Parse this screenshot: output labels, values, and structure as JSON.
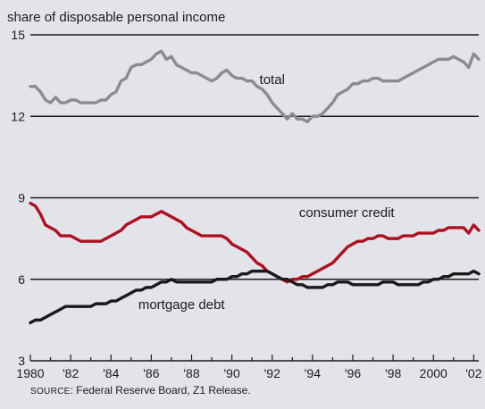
{
  "chart_data": {
    "type": "line",
    "ylabel": "share of disposable personal income",
    "ylim": [
      3,
      15
    ],
    "yticks": [
      15,
      12,
      9,
      6,
      3
    ],
    "xlim": [
      1980,
      2002.25
    ],
    "xtick_labels": [
      "1980",
      "'82",
      "'84",
      "'86",
      "'88",
      "'90",
      "'92",
      "'94",
      "'96",
      "'98",
      "2000",
      "'02"
    ],
    "xtick_values": [
      1980,
      1982,
      1984,
      1986,
      1988,
      1990,
      1992,
      1994,
      1996,
      1998,
      2000,
      2002
    ],
    "grid": "horizontal at 15, 12, 9, 6",
    "series": [
      {
        "name": "total",
        "color": "#8c8c8c",
        "x": [
          1980,
          1980.25,
          1980.5,
          1980.75,
          1981,
          1981.25,
          1981.5,
          1981.75,
          1982,
          1982.25,
          1982.5,
          1982.75,
          1983,
          1983.25,
          1983.5,
          1983.75,
          1984,
          1984.25,
          1984.5,
          1984.75,
          1985,
          1985.25,
          1985.5,
          1985.75,
          1986,
          1986.25,
          1986.5,
          1986.75,
          1987,
          1987.25,
          1987.5,
          1987.75,
          1988,
          1988.25,
          1988.5,
          1988.75,
          1989,
          1989.25,
          1989.5,
          1989.75,
          1990,
          1990.25,
          1990.5,
          1990.75,
          1991,
          1991.25,
          1991.5,
          1991.75,
          1992,
          1992.25,
          1992.5,
          1992.75,
          1993,
          1993.25,
          1993.5,
          1993.75,
          1994,
          1994.25,
          1994.5,
          1994.75,
          1995,
          1995.25,
          1995.5,
          1995.75,
          1996,
          1996.25,
          1996.5,
          1996.75,
          1997,
          1997.25,
          1997.5,
          1997.75,
          1998,
          1998.25,
          1998.5,
          1998.75,
          1999,
          1999.25,
          1999.5,
          1999.75,
          2000,
          2000.25,
          2000.5,
          2000.75,
          2001,
          2001.25,
          2001.5,
          2001.75,
          2002,
          2002.25
        ],
        "values": [
          13.1,
          13.1,
          12.9,
          12.6,
          12.5,
          12.7,
          12.5,
          12.5,
          12.6,
          12.6,
          12.5,
          12.5,
          12.5,
          12.5,
          12.6,
          12.6,
          12.8,
          12.9,
          13.3,
          13.4,
          13.8,
          13.9,
          13.9,
          14.0,
          14.1,
          14.3,
          14.4,
          14.1,
          14.2,
          13.9,
          13.8,
          13.7,
          13.6,
          13.6,
          13.5,
          13.4,
          13.3,
          13.4,
          13.6,
          13.7,
          13.5,
          13.4,
          13.4,
          13.3,
          13.3,
          13.1,
          13.0,
          12.8,
          12.5,
          12.3,
          12.1,
          11.9,
          12.1,
          11.9,
          11.9,
          11.8,
          12.0,
          12.0,
          12.1,
          12.3,
          12.5,
          12.8,
          12.9,
          13.0,
          13.2,
          13.2,
          13.3,
          13.3,
          13.4,
          13.4,
          13.3,
          13.3,
          13.3,
          13.3,
          13.4,
          13.5,
          13.6,
          13.7,
          13.8,
          13.9,
          14.0,
          14.1,
          14.1,
          14.1,
          14.2,
          14.1,
          14.0,
          13.8,
          14.3,
          14.1
        ]
      },
      {
        "name": "consumer credit",
        "color": "#b00f1f",
        "x": [
          1980,
          1980.25,
          1980.5,
          1980.75,
          1981,
          1981.25,
          1981.5,
          1981.75,
          1982,
          1982.25,
          1982.5,
          1982.75,
          1983,
          1983.25,
          1983.5,
          1983.75,
          1984,
          1984.25,
          1984.5,
          1984.75,
          1985,
          1985.25,
          1985.5,
          1985.75,
          1986,
          1986.25,
          1986.5,
          1986.75,
          1987,
          1987.25,
          1987.5,
          1987.75,
          1988,
          1988.25,
          1988.5,
          1988.75,
          1989,
          1989.25,
          1989.5,
          1989.75,
          1990,
          1990.25,
          1990.5,
          1990.75,
          1991,
          1991.25,
          1991.5,
          1991.75,
          1992,
          1992.25,
          1992.5,
          1992.75,
          1993,
          1993.25,
          1993.5,
          1993.75,
          1994,
          1994.25,
          1994.5,
          1994.75,
          1995,
          1995.25,
          1995.5,
          1995.75,
          1996,
          1996.25,
          1996.5,
          1996.75,
          1997,
          1997.25,
          1997.5,
          1997.75,
          1998,
          1998.25,
          1998.5,
          1998.75,
          1999,
          1999.25,
          1999.5,
          1999.75,
          2000,
          2000.25,
          2000.5,
          2000.75,
          2001,
          2001.25,
          2001.5,
          2001.75,
          2002,
          2002.25
        ],
        "values": [
          8.8,
          8.7,
          8.4,
          8.0,
          7.9,
          7.8,
          7.6,
          7.6,
          7.6,
          7.5,
          7.4,
          7.4,
          7.4,
          7.4,
          7.4,
          7.5,
          7.6,
          7.7,
          7.8,
          8.0,
          8.1,
          8.2,
          8.3,
          8.3,
          8.3,
          8.4,
          8.5,
          8.4,
          8.3,
          8.2,
          8.1,
          7.9,
          7.8,
          7.7,
          7.6,
          7.6,
          7.6,
          7.6,
          7.6,
          7.5,
          7.3,
          7.2,
          7.1,
          7.0,
          6.8,
          6.6,
          6.5,
          6.3,
          6.2,
          6.1,
          6.0,
          5.9,
          6.0,
          6.0,
          6.1,
          6.1,
          6.2,
          6.3,
          6.4,
          6.5,
          6.6,
          6.8,
          7.0,
          7.2,
          7.3,
          7.4,
          7.4,
          7.5,
          7.5,
          7.6,
          7.6,
          7.5,
          7.5,
          7.5,
          7.6,
          7.6,
          7.6,
          7.7,
          7.7,
          7.7,
          7.7,
          7.8,
          7.8,
          7.9,
          7.9,
          7.9,
          7.9,
          7.7,
          8.0,
          7.8
        ]
      },
      {
        "name": "mortgage debt",
        "color": "#1a1a1a",
        "x": [
          1980,
          1980.25,
          1980.5,
          1980.75,
          1981,
          1981.25,
          1981.5,
          1981.75,
          1982,
          1982.25,
          1982.5,
          1982.75,
          1983,
          1983.25,
          1983.5,
          1983.75,
          1984,
          1984.25,
          1984.5,
          1984.75,
          1985,
          1985.25,
          1985.5,
          1985.75,
          1986,
          1986.25,
          1986.5,
          1986.75,
          1987,
          1987.25,
          1987.5,
          1987.75,
          1988,
          1988.25,
          1988.5,
          1988.75,
          1989,
          1989.25,
          1989.5,
          1989.75,
          1990,
          1990.25,
          1990.5,
          1990.75,
          1991,
          1991.25,
          1991.5,
          1991.75,
          1992,
          1992.25,
          1992.5,
          1992.75,
          1993,
          1993.25,
          1993.5,
          1993.75,
          1994,
          1994.25,
          1994.5,
          1994.75,
          1995,
          1995.25,
          1995.5,
          1995.75,
          1996,
          1996.25,
          1996.5,
          1996.75,
          1997,
          1997.25,
          1997.5,
          1997.75,
          1998,
          1998.25,
          1998.5,
          1998.75,
          1999,
          1999.25,
          1999.5,
          1999.75,
          2000,
          2000.25,
          2000.5,
          2000.75,
          2001,
          2001.25,
          2001.5,
          2001.75,
          2002,
          2002.25
        ],
        "values": [
          4.4,
          4.5,
          4.5,
          4.6,
          4.7,
          4.8,
          4.9,
          5.0,
          5.0,
          5.0,
          5.0,
          5.0,
          5.0,
          5.1,
          5.1,
          5.1,
          5.2,
          5.2,
          5.3,
          5.4,
          5.5,
          5.6,
          5.6,
          5.7,
          5.7,
          5.8,
          5.9,
          5.9,
          6.0,
          5.9,
          5.9,
          5.9,
          5.9,
          5.9,
          5.9,
          5.9,
          5.9,
          6.0,
          6.0,
          6.0,
          6.1,
          6.1,
          6.2,
          6.2,
          6.3,
          6.3,
          6.3,
          6.3,
          6.2,
          6.1,
          6.0,
          6.0,
          5.9,
          5.8,
          5.8,
          5.7,
          5.7,
          5.7,
          5.7,
          5.8,
          5.8,
          5.9,
          5.9,
          5.9,
          5.8,
          5.8,
          5.8,
          5.8,
          5.8,
          5.8,
          5.9,
          5.9,
          5.9,
          5.8,
          5.8,
          5.8,
          5.8,
          5.8,
          5.9,
          5.9,
          6.0,
          6.0,
          6.1,
          6.1,
          6.2,
          6.2,
          6.2,
          6.2,
          6.3,
          6.2
        ]
      }
    ],
    "annotations": [
      {
        "text": "total",
        "x": 1992,
        "y": 13.2
      },
      {
        "text": "consumer credit",
        "x": 1995.7,
        "y": 8.3
      },
      {
        "text": "mortgage debt",
        "x": 1987.5,
        "y": 4.9
      }
    ],
    "source_prefix": "Source",
    "source_text": ": Federal Reserve Board, Z1 Release."
  }
}
